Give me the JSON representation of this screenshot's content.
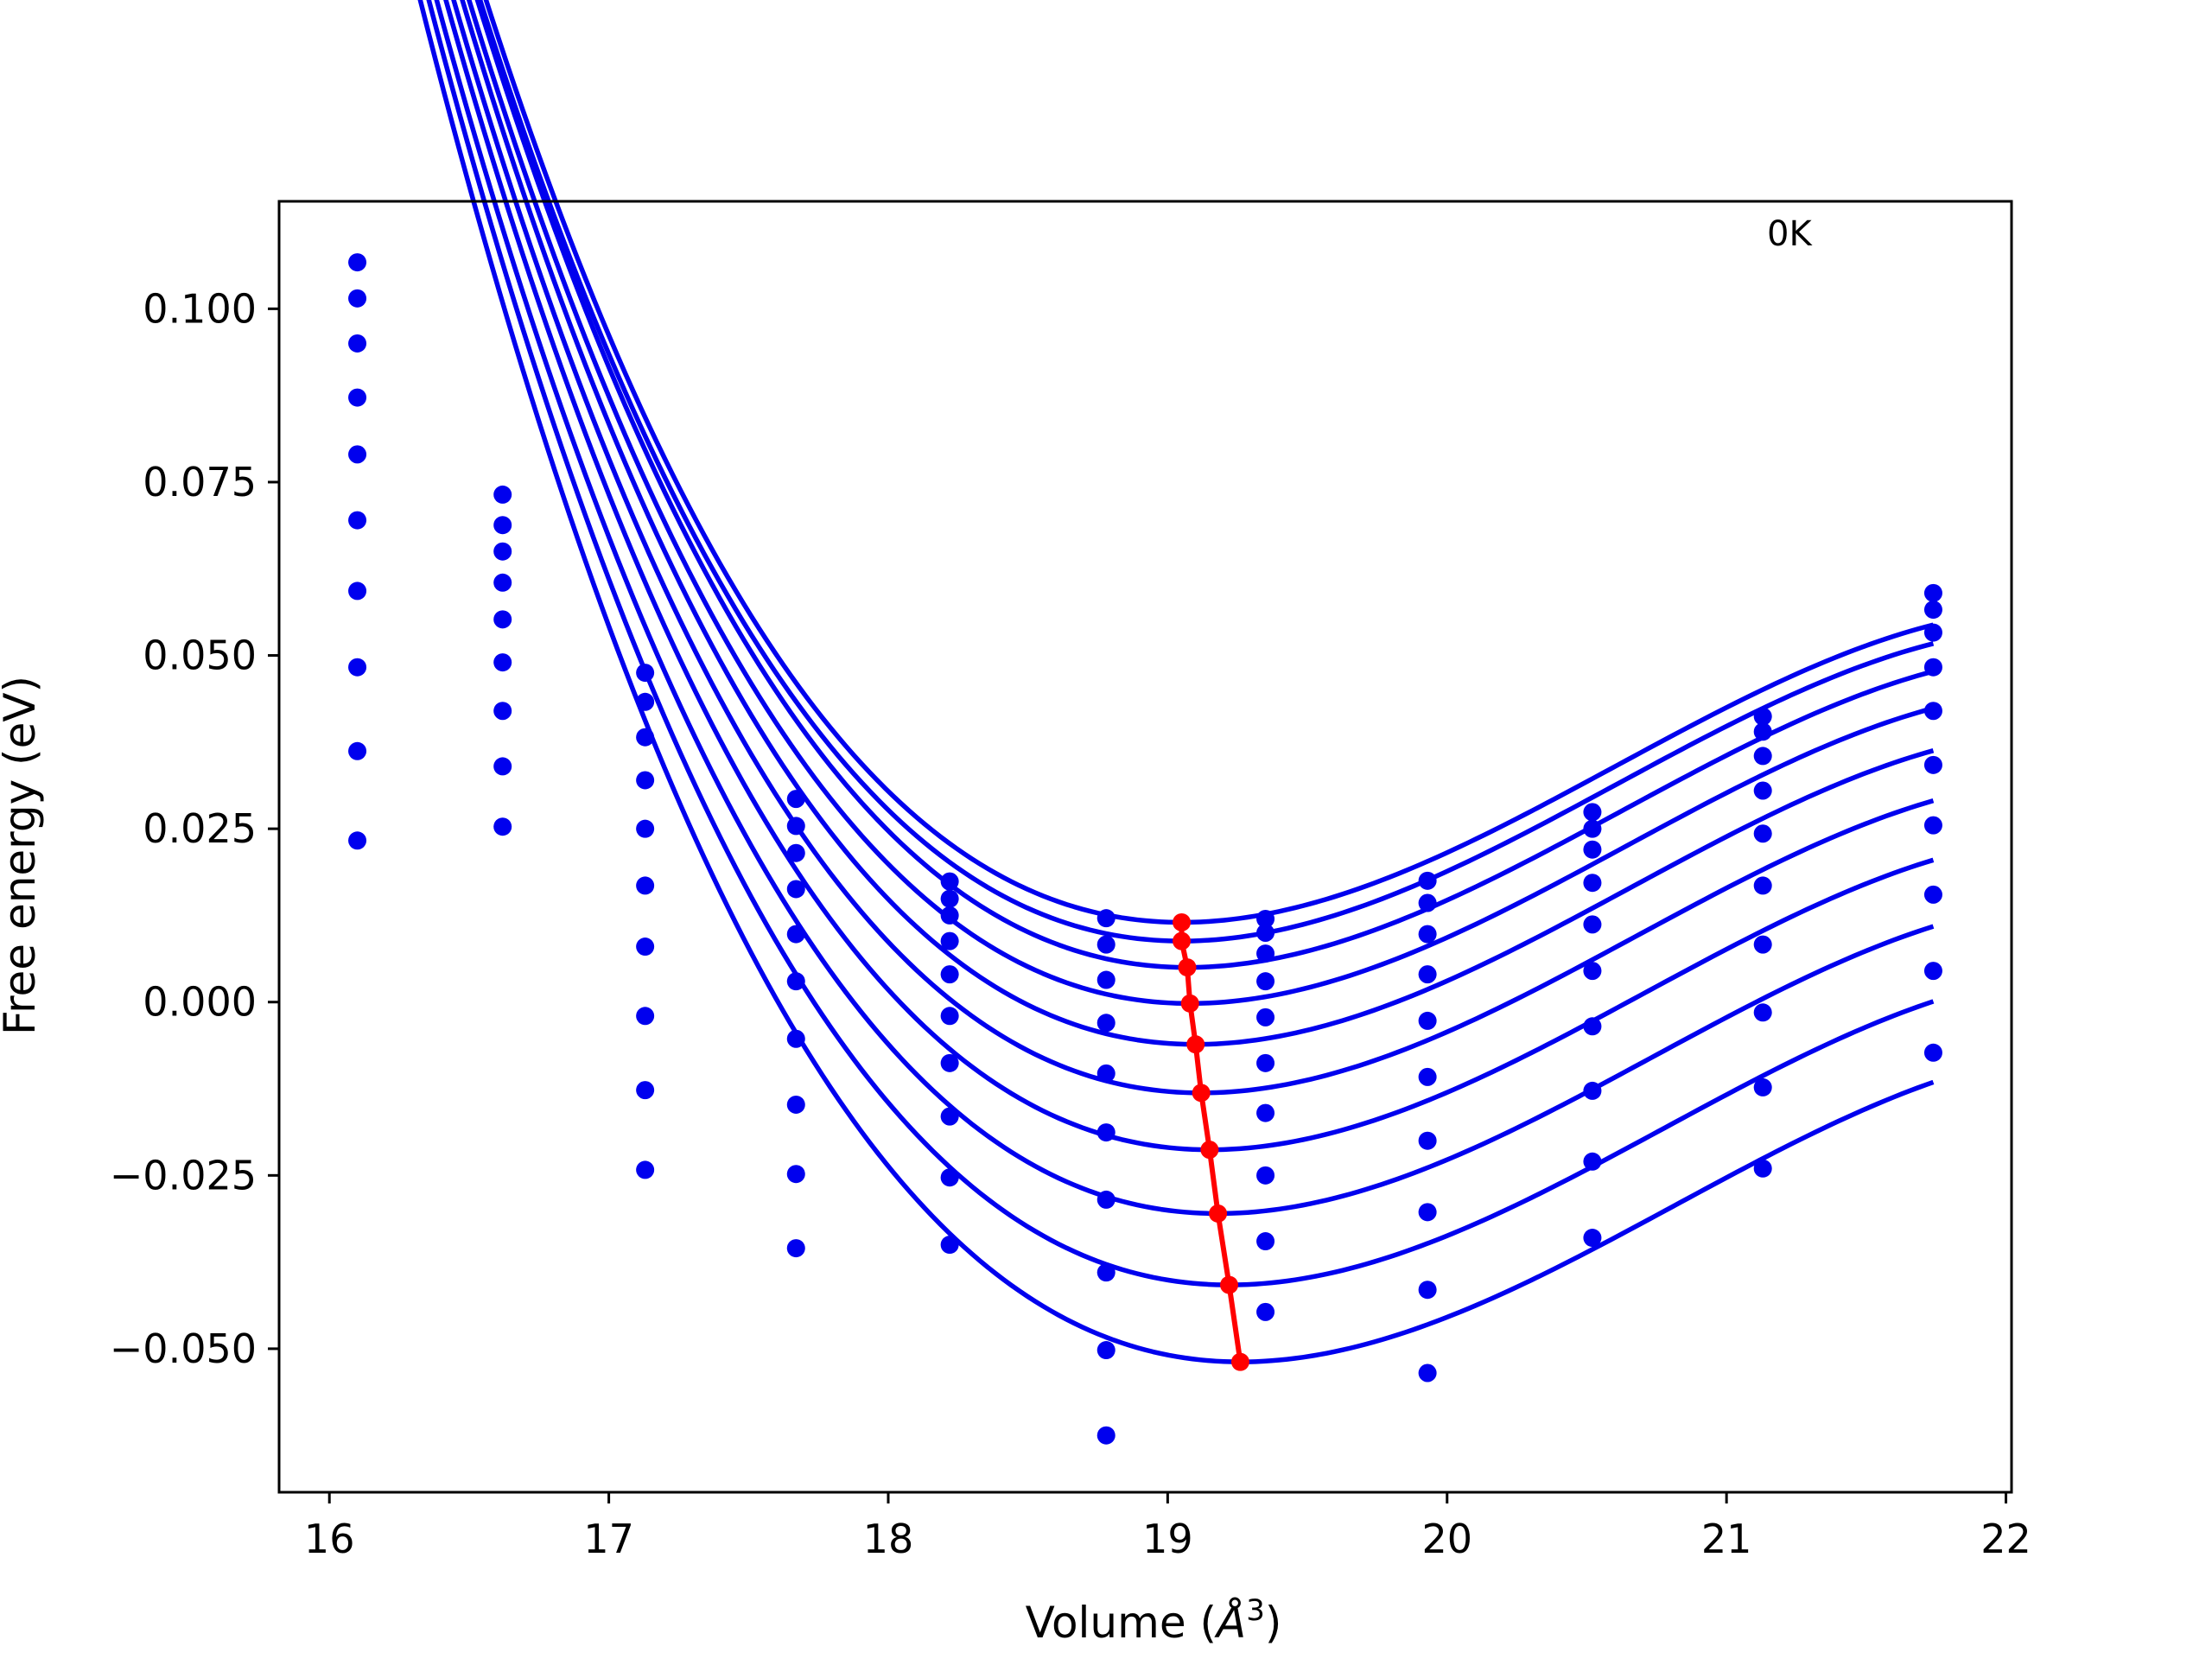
{
  "chart_data": {
    "type": "line",
    "xlabel": "Volume (Å³)",
    "xlabel_main": "Volume (",
    "xlabel_unit": "Å",
    "xlabel_power": "3",
    "xlabel_close": ")",
    "ylabel": "Free energy (eV)",
    "annotation": "0K",
    "xlim": [
      15.82,
      22.02
    ],
    "ylim": [
      -0.0707,
      0.1155
    ],
    "x_ticks": [
      16,
      17,
      18,
      19,
      20,
      21,
      22
    ],
    "x_tick_labels": [
      "16",
      "17",
      "18",
      "19",
      "20",
      "21",
      "22"
    ],
    "y_ticks": [
      0.1,
      0.075,
      0.05,
      0.025,
      0.0,
      -0.025,
      -0.05
    ],
    "y_tick_labels": [
      "0.100",
      "0.075",
      "0.050",
      "0.025",
      "0.000",
      "−0.025",
      "−0.050"
    ],
    "grid": false,
    "legend": "none",
    "colors": {
      "fit": "#0000ee",
      "points": "#0000ee",
      "minima": "#ff0000",
      "frame": "#000000"
    },
    "volumes": [
      16.1,
      16.62,
      17.13,
      17.67,
      18.22,
      18.78,
      19.35,
      19.93,
      20.52,
      21.13,
      21.74
    ],
    "series": [
      {
        "values": [
          0.1067,
          0.0732,
          0.0475,
          0.0293,
          0.0174,
          0.0121,
          0.012,
          0.0175,
          0.0274,
          0.0412,
          0.059
        ],
        "fit": {
          "v0": 19.05,
          "e0": 0.0115,
          "a": 0.014,
          "b": -0.003
        }
      },
      {
        "values": [
          0.1015,
          0.0688,
          0.0433,
          0.0254,
          0.0149,
          0.0083,
          0.01,
          0.0143,
          0.025,
          0.039,
          0.0566
        ],
        "fit": {
          "v0": 19.05,
          "e0": 0.0088,
          "a": 0.014,
          "b": -0.003
        }
      },
      {
        "values": [
          0.095,
          0.065,
          0.0382,
          0.0215,
          0.0125,
          0.0032,
          0.007,
          0.0098,
          0.022,
          0.0355,
          0.0533
        ],
        "fit": {
          "v0": 19.07,
          "e0": 0.005,
          "a": 0.014,
          "b": -0.003
        }
      },
      {
        "values": [
          0.0872,
          0.0605,
          0.032,
          0.0163,
          0.0088,
          -0.003,
          0.003,
          0.004,
          0.0172,
          0.0305,
          0.0483
        ],
        "fit": {
          "v0": 19.08,
          "e0": -0.0002,
          "a": 0.014,
          "b": -0.003
        }
      },
      {
        "values": [
          0.079,
          0.0552,
          0.025,
          0.0098,
          0.004,
          -0.0103,
          -0.0022,
          -0.0027,
          0.0112,
          0.0243,
          0.042
        ],
        "fit": {
          "v0": 19.1,
          "e0": -0.0061,
          "a": 0.014,
          "b": -0.003
        }
      },
      {
        "values": [
          0.0695,
          0.049,
          0.0168,
          0.003,
          -0.002,
          -0.0188,
          -0.0088,
          -0.0108,
          0.0045,
          0.0168,
          0.0342
        ],
        "fit": {
          "v0": 19.12,
          "e0": -0.0131,
          "a": 0.014,
          "b": -0.003
        }
      },
      {
        "values": [
          0.0593,
          0.042,
          0.008,
          -0.0053,
          -0.0088,
          -0.0285,
          -0.016,
          -0.02,
          -0.0035,
          0.0083,
          0.0255
        ],
        "fit": {
          "v0": 19.15,
          "e0": -0.0213,
          "a": 0.014,
          "b": -0.003
        }
      },
      {
        "values": [
          0.0483,
          0.034,
          -0.002,
          -0.0148,
          -0.0165,
          -0.039,
          -0.025,
          -0.0303,
          -0.0128,
          -0.0015,
          0.0155
        ],
        "fit": {
          "v0": 19.18,
          "e0": -0.0305,
          "a": 0.014,
          "b": -0.003
        }
      },
      {
        "values": [
          0.0362,
          0.0253,
          -0.0127,
          -0.0248,
          -0.0253,
          -0.0502,
          -0.0345,
          -0.0415,
          -0.023,
          -0.0123,
          0.0045
        ],
        "fit": {
          "v0": 19.22,
          "e0": -0.0408,
          "a": 0.014,
          "b": -0.003
        }
      },
      {
        "values": [
          0.0233,
          null,
          -0.0242,
          -0.0355,
          -0.035,
          -0.0625,
          -0.0447,
          -0.0535,
          -0.034,
          -0.024,
          -0.0073
        ],
        "fit": {
          "v0": 19.26,
          "e0": -0.0519,
          "a": 0.014,
          "b": -0.003
        }
      }
    ],
    "minima": {
      "x": [
        19.05,
        19.05,
        19.07,
        19.08,
        19.1,
        19.12,
        19.15,
        19.18,
        19.22,
        19.26
      ],
      "y": [
        0.0115,
        0.0088,
        0.005,
        -0.0002,
        -0.0061,
        -0.0131,
        -0.0213,
        -0.0305,
        -0.0408,
        -0.0519
      ]
    }
  }
}
